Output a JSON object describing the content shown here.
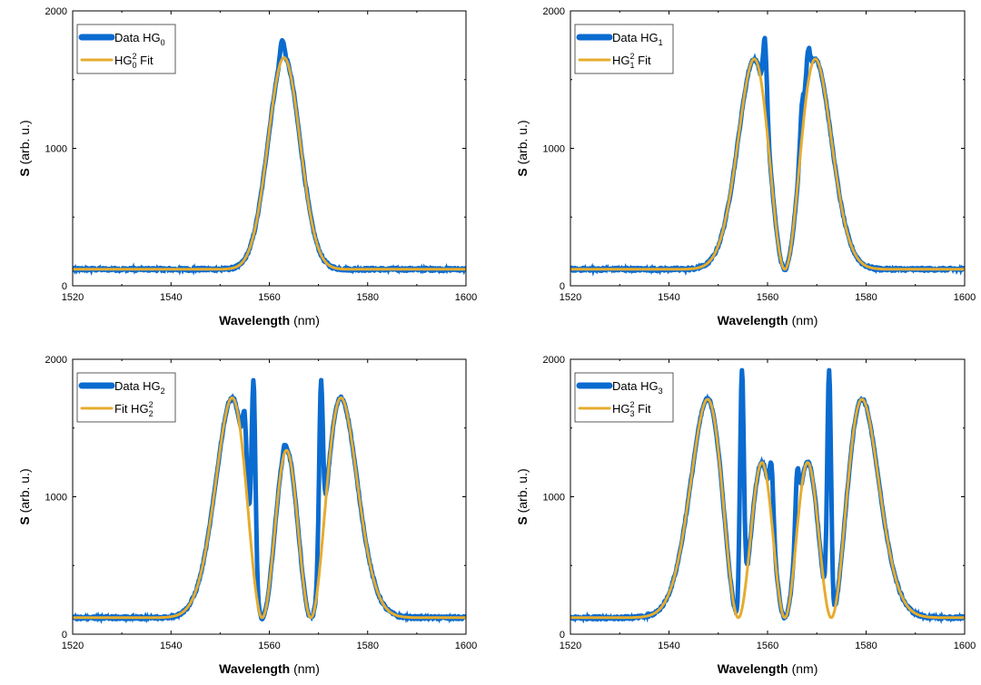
{
  "figure": {
    "colors": {
      "data": "#0a6bd0",
      "fit": "#e6ac2e",
      "axis": "#000000",
      "background": "#ffffff"
    },
    "xlabel": {
      "bold": "Wavelength",
      "unit": " (nm)"
    },
    "ylabel": {
      "bold": "S",
      "unit": " (arb. u.)"
    }
  },
  "chart_data": [
    {
      "type": "line",
      "x_range": [
        1520,
        1600
      ],
      "ylim": [
        0,
        2000
      ],
      "x_ticks": [
        1520,
        1540,
        1560,
        1580,
        1600
      ],
      "y_ticks": [
        0,
        1000,
        2000
      ],
      "xlabel": "Wavelength (nm)",
      "ylabel": "S (arb. u.)",
      "grid": false,
      "legend_position": "top-left",
      "legend": [
        {
          "prefix": "Data HG",
          "sub": "0",
          "sup": "",
          "suffix": ""
        },
        {
          "prefix": "HG",
          "sub": "0",
          "sup": "2",
          "suffix": " Fit"
        }
      ],
      "series": [
        {
          "name": "Data HG0",
          "role": "data",
          "baseline": 120,
          "peaks": [
            [
              1562.6,
              1790
            ],
            [
              1564.2,
              1330
            ]
          ],
          "x_range": [
            1520,
            1600
          ]
        },
        {
          "name": "HG0^2 Fit",
          "role": "fit",
          "order": 0,
          "center": 1563.0,
          "w": 4.6,
          "amplitude": 1540,
          "baseline": 120
        }
      ]
    },
    {
      "type": "line",
      "x_range": [
        1520,
        1600
      ],
      "ylim": [
        0,
        2000
      ],
      "x_ticks": [
        1520,
        1540,
        1560,
        1580,
        1600
      ],
      "y_ticks": [
        0,
        1000,
        2000
      ],
      "xlabel": "Wavelength (nm)",
      "ylabel": "S (arb. u.)",
      "grid": false,
      "legend_position": "top-left",
      "legend": [
        {
          "prefix": "Data HG",
          "sub": "1",
          "sup": "",
          "suffix": ""
        },
        {
          "prefix": "HG",
          "sub": "1",
          "sup": "2",
          "suffix": " Fit"
        }
      ],
      "series": [
        {
          "name": "Data HG1",
          "role": "data",
          "baseline": 120,
          "peaks": [
            [
              1559.5,
              1780
            ],
            [
              1568.2,
              1710
            ],
            [
              1567.0,
              1330
            ]
          ],
          "x_range": [
            1520,
            1600
          ]
        },
        {
          "name": "HG1^2 Fit",
          "role": "fit",
          "order": 1,
          "center": 1563.5,
          "w": 6.2,
          "amplitude": 1530,
          "baseline": 120
        }
      ]
    },
    {
      "type": "line",
      "x_range": [
        1520,
        1600
      ],
      "ylim": [
        0,
        2000
      ],
      "x_ticks": [
        1520,
        1540,
        1560,
        1580,
        1600
      ],
      "y_ticks": [
        0,
        1000,
        2000
      ],
      "xlabel": "Wavelength (nm)",
      "ylabel": "S (arb. u.)",
      "grid": false,
      "legend_position": "top-left",
      "legend": [
        {
          "prefix": "Data HG",
          "sub": "2",
          "sup": "",
          "suffix": ""
        },
        {
          "prefix": "Fit HG",
          "sub": "2",
          "sup": "2",
          "suffix": ""
        }
      ],
      "series": [
        {
          "name": "Data HG2",
          "role": "data",
          "baseline": 120,
          "peaks": [
            [
              1556.8,
              1840
            ],
            [
              1563.0,
              1360
            ],
            [
              1570.5,
              1830
            ],
            [
              1555.0,
              1600
            ]
          ],
          "x_range": [
            1520,
            1600
          ]
        },
        {
          "name": "Fit HG2^2",
          "role": "fit",
          "order": 2,
          "center": 1563.5,
          "w": 7.0,
          "amplitude": 1600,
          "baseline": 120
        }
      ]
    },
    {
      "type": "line",
      "x_range": [
        1520,
        1600
      ],
      "ylim": [
        0,
        2000
      ],
      "x_ticks": [
        1520,
        1540,
        1560,
        1580,
        1600
      ],
      "y_ticks": [
        0,
        1000,
        2000
      ],
      "xlabel": "Wavelength (nm)",
      "ylabel": "S (arb. u.)",
      "grid": false,
      "legend_position": "top-left",
      "legend": [
        {
          "prefix": "Data HG",
          "sub": "3",
          "sup": "",
          "suffix": ""
        },
        {
          "prefix": "HG",
          "sub": "3",
          "sup": "2",
          "suffix": " Fit"
        }
      ],
      "series": [
        {
          "name": "Data HG3",
          "role": "data",
          "baseline": 120,
          "peaks": [
            [
              1554.8,
              1930
            ],
            [
              1560.8,
              1230
            ],
            [
              1566.0,
              1190
            ],
            [
              1572.5,
              1930
            ]
          ],
          "x_range": [
            1520,
            1600
          ]
        },
        {
          "name": "HG3^2 Fit",
          "role": "fit",
          "order": 3,
          "center": 1563.5,
          "w": 7.7,
          "amplitude": 1590,
          "baseline": 120
        }
      ]
    }
  ]
}
